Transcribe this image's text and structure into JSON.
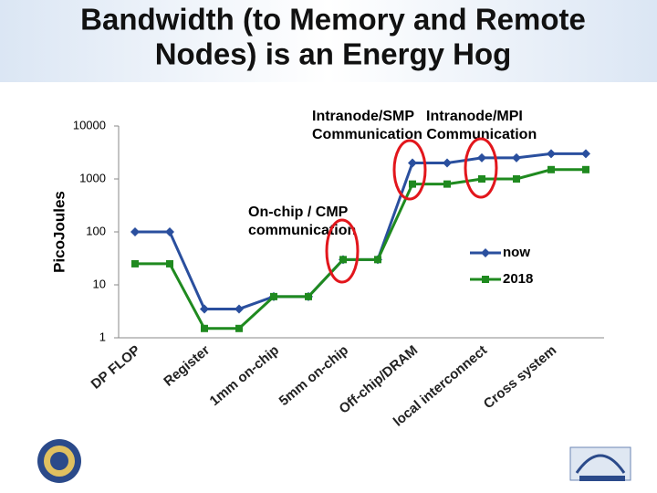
{
  "chart_data": {
    "type": "line",
    "title": [
      "Bandwidth (to Memory and Remote",
      "Nodes) is an Energy Hog"
    ],
    "ylabel": "PicoJoules",
    "annotations": [
      "Intranode/SMP   Intranode/MPI",
      "Communication Communication",
      "On-chip / CMP",
      "communication"
    ],
    "categories": [
      "DP FLOP",
      null,
      "Register",
      null,
      "1mm on-chip",
      null,
      "5mm on-chip",
      null,
      "Off-chip/DRAM",
      null,
      "local interconnect",
      null,
      "Cross system",
      null
    ],
    "series": [
      {
        "name": "now",
        "color": "#2a4f9e",
        "marker": "diamond",
        "values": [
          100,
          100,
          3.5,
          3.5,
          6,
          6,
          30,
          30,
          2000,
          2000,
          2500,
          2500,
          3000,
          3000
        ]
      },
      {
        "name": "2018",
        "color": "#1f8a1f",
        "marker": "square",
        "values": [
          25,
          25,
          1.5,
          1.5,
          6,
          6,
          30,
          30,
          800,
          800,
          1000,
          1000,
          1500,
          1500
        ]
      }
    ],
    "ylim": [
      1,
      10000
    ],
    "yticks": [
      1,
      10,
      100,
      1000,
      10000
    ],
    "log_y": true,
    "grid": false,
    "legend": "right"
  }
}
